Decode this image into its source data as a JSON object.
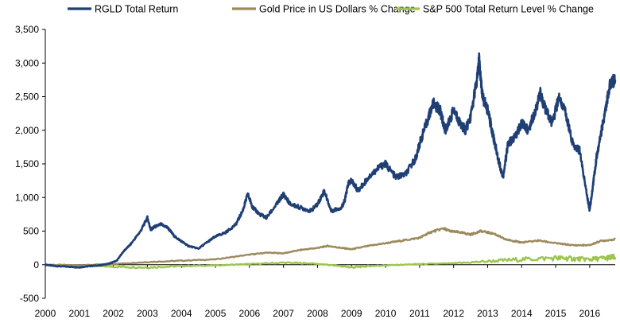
{
  "chart_data": {
    "type": "line",
    "title": "",
    "xlabel": "",
    "ylabel": "",
    "xlim": [
      2000,
      2016.75
    ],
    "ylim": [
      -500,
      3500
    ],
    "x_ticks": [
      "2000",
      "2001",
      "2002",
      "2003",
      "2004",
      "2005",
      "2006",
      "2007",
      "2008",
      "2009",
      "2010",
      "2011",
      "2012",
      "2013",
      "2014",
      "2015",
      "2016"
    ],
    "y_ticks": [
      "-500",
      "0",
      "500",
      "1,000",
      "1,500",
      "2,000",
      "2,500",
      "3,000",
      "3,500"
    ],
    "y_tick_values": [
      -500,
      0,
      500,
      1000,
      1500,
      2000,
      2500,
      3000,
      3500
    ],
    "grid": false,
    "legend_position": "top",
    "series": [
      {
        "name": "RGLD Total Return",
        "color": "#1f3f75",
        "x": [
          2000.0,
          2000.3,
          2000.7,
          2001.0,
          2001.3,
          2001.6,
          2001.9,
          2002.1,
          2002.3,
          2002.5,
          2002.8,
          2003.0,
          2003.1,
          2003.2,
          2003.4,
          2003.6,
          2003.8,
          2004.0,
          2004.2,
          2004.5,
          2004.8,
          2005.0,
          2005.3,
          2005.6,
          2005.8,
          2005.95,
          2006.1,
          2006.3,
          2006.5,
          2006.8,
          2007.0,
          2007.2,
          2007.5,
          2007.8,
          2008.0,
          2008.2,
          2008.4,
          2008.7,
          2008.8,
          2008.9,
          2009.0,
          2009.2,
          2009.5,
          2009.8,
          2010.0,
          2010.3,
          2010.6,
          2010.9,
          2011.0,
          2011.2,
          2011.4,
          2011.6,
          2011.75,
          2011.85,
          2012.0,
          2012.2,
          2012.35,
          2012.5,
          2012.7,
          2012.75,
          2012.85,
          2013.0,
          2013.15,
          2013.3,
          2013.45,
          2013.6,
          2013.8,
          2014.0,
          2014.2,
          2014.4,
          2014.55,
          2014.7,
          2014.9,
          2015.1,
          2015.3,
          2015.5,
          2015.7,
          2015.9,
          2016.0,
          2016.1,
          2016.2,
          2016.35,
          2016.5,
          2016.6,
          2016.75
        ],
        "values": [
          0,
          -20,
          -30,
          -40,
          -20,
          -10,
          20,
          60,
          200,
          300,
          500,
          700,
          520,
          560,
          600,
          550,
          420,
          350,
          280,
          240,
          350,
          420,
          480,
          600,
          800,
          1050,
          850,
          750,
          700,
          900,
          1050,
          900,
          850,
          800,
          900,
          1100,
          800,
          850,
          950,
          1200,
          1250,
          1100,
          1300,
          1450,
          1500,
          1300,
          1350,
          1600,
          1800,
          2100,
          2400,
          2300,
          2000,
          2100,
          2300,
          2100,
          2000,
          2200,
          2800,
          3050,
          2500,
          2300,
          1950,
          1600,
          1300,
          1800,
          1900,
          2100,
          2000,
          2300,
          2550,
          2300,
          2100,
          2500,
          2250,
          1800,
          1700,
          1100,
          800,
          1200,
          1600,
          2000,
          2400,
          2700,
          2750
        ]
      },
      {
        "name": "Gold Price in US Dollars % Change",
        "color": "#9c8a5d",
        "x": [
          2000.0,
          2001.0,
          2002.0,
          2003.0,
          2004.0,
          2005.0,
          2006.0,
          2006.5,
          2007.0,
          2007.5,
          2008.0,
          2008.3,
          2008.7,
          2009.0,
          2009.5,
          2010.0,
          2010.5,
          2011.0,
          2011.3,
          2011.7,
          2011.9,
          2012.2,
          2012.5,
          2012.8,
          2013.2,
          2013.5,
          2013.8,
          2014.0,
          2014.5,
          2015.0,
          2015.5,
          2016.0,
          2016.3,
          2016.75
        ],
        "values": [
          0,
          -10,
          10,
          40,
          60,
          80,
          150,
          180,
          170,
          220,
          250,
          280,
          250,
          230,
          280,
          320,
          360,
          400,
          480,
          540,
          500,
          480,
          450,
          500,
          460,
          380,
          350,
          330,
          360,
          320,
          290,
          290,
          350,
          380
        ]
      },
      {
        "name": "S&P 500 Total Return Level % Change",
        "color": "#9cc54e",
        "x": [
          2000.0,
          2001.0,
          2002.0,
          2003.0,
          2004.0,
          2005.0,
          2006.0,
          2007.0,
          2007.8,
          2008.5,
          2009.0,
          2009.5,
          2010.0,
          2011.0,
          2012.0,
          2013.0,
          2014.0,
          2015.0,
          2015.5,
          2016.0,
          2016.5,
          2016.75
        ],
        "values": [
          0,
          -10,
          -30,
          -40,
          -20,
          -10,
          10,
          30,
          20,
          -10,
          -40,
          -20,
          -10,
          10,
          20,
          50,
          80,
          100,
          90,
          80,
          100,
          110
        ]
      }
    ]
  }
}
